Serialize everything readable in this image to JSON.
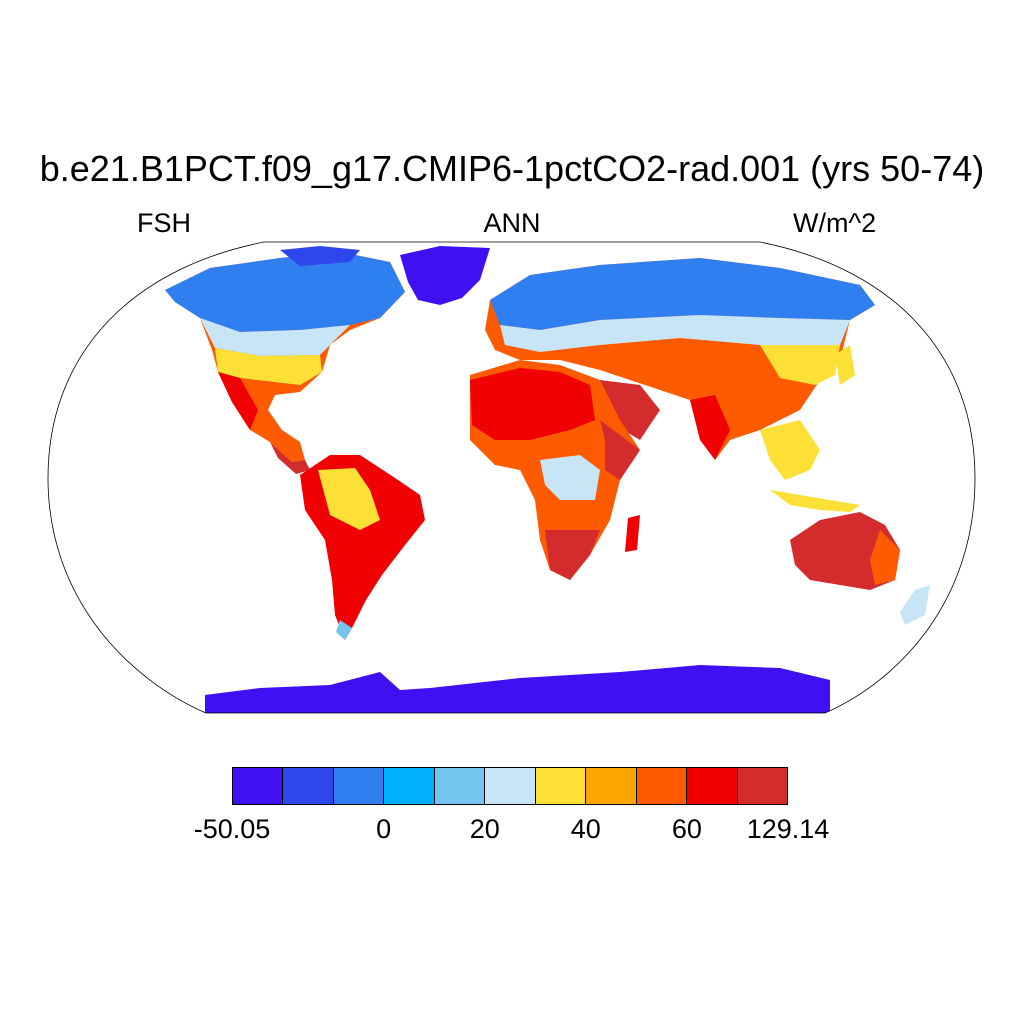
{
  "title": "b.e21.B1PCT.f09_g17.CMIP6-1pctCO2-rad.001 (yrs 50-74)",
  "subtitle_left": "FSH",
  "subtitle_center": "ANN",
  "subtitle_right": "W/m^2",
  "projection": "robinson",
  "colorbar": {
    "colors": [
      "#3f10f2",
      "#2e47ea",
      "#2f7ff0",
      "#00b0ff",
      "#73c5f0",
      "#c8e5f7",
      "#fde035",
      "#fda400",
      "#fe5b00",
      "#f00000",
      "#d42c2c"
    ],
    "labels": [
      {
        "text": "-50.05",
        "boundary": 0
      },
      {
        "text": "0",
        "boundary": 3
      },
      {
        "text": "20",
        "boundary": 5
      },
      {
        "text": "40",
        "boundary": 7
      },
      {
        "text": "60",
        "boundary": 9
      },
      {
        "text": "129.14",
        "boundary": 11
      }
    ]
  },
  "regions": {
    "arctic_tundra": "sensible heat near 0-20",
    "greenland_antarctica": "lowest class, below -30",
    "deserts_australia": "highest class, above 70"
  }
}
